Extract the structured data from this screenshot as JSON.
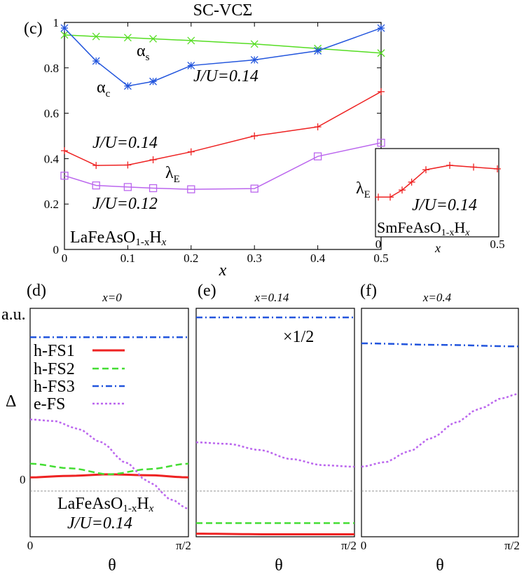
{
  "chart_data": [
    {
      "type": "line",
      "panel_label": "(c)",
      "title": "SC-VCΣ",
      "xlabel": "x",
      "material_label_main": "LaFeAsO",
      "material_label_sub": "1-x",
      "material_label_end": "H",
      "material_label_x": "x",
      "xlim": [
        0,
        0.5
      ],
      "ylim": [
        0,
        1
      ],
      "xticks": [
        "0",
        "0.1",
        "0.2",
        "0.3",
        "0.4",
        "0.5"
      ],
      "yticks": [
        "0",
        "0.2",
        "0.4",
        "0.6",
        "0.8",
        "1"
      ],
      "series": [
        {
          "name": "αs",
          "color": "#55dd22",
          "marker": "x",
          "x": [
            0,
            0.05,
            0.1,
            0.14,
            0.2,
            0.3,
            0.4,
            0.5
          ],
          "values": [
            0.945,
            0.938,
            0.933,
            0.928,
            0.92,
            0.905,
            0.885,
            0.865
          ]
        },
        {
          "name": "αc",
          "color": "#2255dd",
          "marker": "asterisk",
          "x": [
            0,
            0.05,
            0.1,
            0.14,
            0.2,
            0.3,
            0.4,
            0.5
          ],
          "values": [
            0.975,
            0.83,
            0.72,
            0.74,
            0.81,
            0.835,
            0.875,
            0.975
          ]
        },
        {
          "name": "λE J/U=0.14",
          "color": "#ee2222",
          "marker": "plus",
          "x": [
            0,
            0.05,
            0.1,
            0.14,
            0.2,
            0.3,
            0.4,
            0.5
          ],
          "values": [
            0.435,
            0.37,
            0.372,
            0.395,
            0.43,
            0.5,
            0.54,
            0.695
          ]
        },
        {
          "name": "λE J/U=0.12",
          "color": "#bb66ee",
          "marker": "square",
          "x": [
            0,
            0.05,
            0.1,
            0.14,
            0.2,
            0.3,
            0.4,
            0.5
          ],
          "values": [
            0.325,
            0.282,
            0.275,
            0.27,
            0.265,
            0.268,
            0.41,
            0.47
          ]
        }
      ],
      "annotations": {
        "alpha_s_main": "α",
        "alpha_s_sub": "s",
        "alpha_c_main": "α",
        "alpha_c_sub": "c",
        "lambda_main": "λ",
        "lambda_sub": "E",
        "ju_label_1": "J/U=0.14",
        "ju_label_2": "J/U=0.14",
        "ju_label_3": "J/U=0.12"
      }
    },
    {
      "type": "line",
      "panel_label": "inset",
      "material_label_main": "SmFeAsO",
      "material_label_sub": "1-x",
      "material_label_end": "H",
      "material_label_x": "x",
      "ylabel_main": "λ",
      "ylabel_sub": "E",
      "xlabel": "x",
      "annotation": "J/U=0.14",
      "xlim": [
        -0.02,
        0.5
      ],
      "ylim": [
        0,
        1
      ],
      "xticks": [
        "0",
        "0.5"
      ],
      "series": [
        {
          "name": "λE",
          "color": "#ee2222",
          "marker": "plus",
          "x": [
            0,
            0.05,
            0.1,
            0.14,
            0.2,
            0.3,
            0.4,
            0.5
          ],
          "values": [
            0.45,
            0.45,
            0.53,
            0.62,
            0.76,
            0.81,
            0.79,
            0.77
          ]
        }
      ]
    },
    {
      "type": "line",
      "panel_label": "(d)",
      "title": "x=0",
      "ylabel": "Δ",
      "yaxis_unit": "a.u.",
      "zero_label": "0",
      "xlabel": "θ",
      "xticks": [
        "0",
        "π/2"
      ],
      "ylim": [
        -1.5,
        6
      ],
      "material_label_main": "LaFeAsO",
      "material_label_sub": "1-x",
      "material_label_end": "H",
      "material_label_x": "x",
      "ju_label": "J/U=0.14",
      "legend": [
        "h-FS1",
        "h-FS2",
        "h-FS3",
        "e-FS"
      ],
      "series": [
        {
          "name": "h-FS1",
          "color": "#ee2222",
          "style": "solid",
          "x": [
            0,
            0.25,
            0.5,
            0.75,
            1
          ],
          "values": [
            0.45,
            0.5,
            0.55,
            0.52,
            0.45
          ]
        },
        {
          "name": "h-FS2",
          "color": "#44dd33",
          "style": "dashed",
          "x": [
            0,
            0.25,
            0.5,
            0.75,
            1
          ],
          "values": [
            0.9,
            0.75,
            0.55,
            0.72,
            0.9
          ]
        },
        {
          "name": "h-FS3",
          "color": "#2255dd",
          "style": "dashdot",
          "x": [
            0,
            0.5,
            1
          ],
          "values": [
            5.05,
            5.05,
            5.05
          ]
        },
        {
          "name": "e-FS",
          "color": "#bb66ee",
          "style": "dotted",
          "x": [
            0,
            0.15,
            0.3,
            0.45,
            0.6,
            0.75,
            0.9,
            1
          ],
          "values": [
            2.35,
            2.3,
            2.05,
            1.6,
            0.95,
            0.3,
            -0.3,
            -0.6
          ]
        }
      ]
    },
    {
      "type": "line",
      "panel_label": "(e)",
      "title": "x=0.14",
      "scale_note": "×1/2",
      "xlabel": "θ",
      "xticks": [
        "0",
        "π/2"
      ],
      "ylim": [
        -1.5,
        6
      ],
      "series": [
        {
          "name": "h-FS1",
          "color": "#ee2222",
          "style": "solid",
          "x": [
            0,
            0.5,
            1
          ],
          "values": [
            -1.4,
            -1.42,
            -1.42
          ]
        },
        {
          "name": "h-FS2",
          "color": "#44dd33",
          "style": "dashed",
          "x": [
            0,
            0.5,
            1
          ],
          "values": [
            -1.05,
            -1.05,
            -1.05
          ]
        },
        {
          "name": "h-FS3",
          "color": "#2255dd",
          "style": "dashdot",
          "x": [
            0,
            0.5,
            1
          ],
          "values": [
            5.7,
            5.7,
            5.7
          ]
        },
        {
          "name": "e-FS",
          "color": "#bb66ee",
          "style": "dotted",
          "x": [
            0,
            0.2,
            0.4,
            0.6,
            0.8,
            1
          ],
          "values": [
            1.6,
            1.55,
            1.35,
            1.05,
            0.85,
            0.8
          ]
        }
      ]
    },
    {
      "type": "line",
      "panel_label": "(f)",
      "title": "x=0.4",
      "xlabel": "θ",
      "xticks": [
        "0",
        "π/2"
      ],
      "ylim": [
        -1.5,
        6
      ],
      "series": [
        {
          "name": "h-FS3",
          "color": "#2255dd",
          "style": "dashdot",
          "x": [
            0,
            0.5,
            1
          ],
          "values": [
            4.85,
            4.8,
            4.75
          ]
        },
        {
          "name": "e-FS",
          "color": "#bb66ee",
          "style": "dotted",
          "x": [
            0,
            0.15,
            0.3,
            0.45,
            0.6,
            0.75,
            0.9,
            1
          ],
          "values": [
            0.8,
            0.95,
            1.3,
            1.75,
            2.25,
            2.7,
            3.05,
            3.2
          ]
        }
      ]
    }
  ]
}
